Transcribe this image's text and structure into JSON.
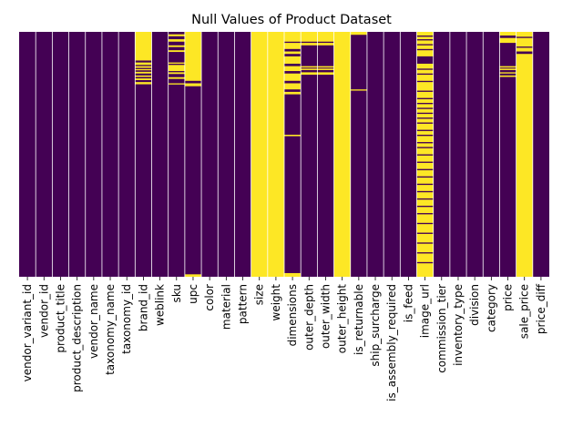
{
  "chart_data": {
    "type": "heatmap",
    "title": "Null Values of Product Dataset",
    "xlabel": "",
    "ylabel": "",
    "colors": {
      "not_null": "#440154",
      "null": "#fde725",
      "separator": "#ffffff"
    },
    "columns": [
      {
        "name": "vendor_variant_id",
        "null_ranges": []
      },
      {
        "name": "vendor_id",
        "null_ranges": []
      },
      {
        "name": "product_title",
        "null_ranges": []
      },
      {
        "name": "product_description",
        "null_ranges": []
      },
      {
        "name": "vendor_name",
        "null_ranges": []
      },
      {
        "name": "taxonomy_name",
        "null_ranges": []
      },
      {
        "name": "taxonomy_id",
        "null_ranges": []
      },
      {
        "name": "brand_id",
        "null_ranges": [
          [
            0,
            0.117
          ],
          [
            0.125,
            0.135
          ],
          [
            0.14,
            0.147
          ],
          [
            0.152,
            0.157
          ],
          [
            0.163,
            0.17
          ],
          [
            0.178,
            0.184
          ],
          [
            0.19,
            0.197
          ],
          [
            0.205,
            0.214
          ]
        ]
      },
      {
        "name": "weblink",
        "null_ranges": []
      },
      {
        "name": "sku",
        "null_ranges": [
          [
            0.01,
            0.018
          ],
          [
            0.03,
            0.04
          ],
          [
            0.055,
            0.062
          ],
          [
            0.075,
            0.082
          ],
          [
            0.125,
            0.13
          ],
          [
            0.135,
            0.16
          ],
          [
            0.165,
            0.172
          ],
          [
            0.185,
            0.192
          ],
          [
            0.21,
            0.215
          ]
        ]
      },
      {
        "name": "upc",
        "null_ranges": [
          [
            0,
            0.2
          ],
          [
            0.21,
            0.222
          ],
          [
            0.99,
            1
          ]
        ]
      },
      {
        "name": "color",
        "null_ranges": []
      },
      {
        "name": "material",
        "null_ranges": []
      },
      {
        "name": "pattern",
        "null_ranges": []
      },
      {
        "name": "size",
        "null_ranges": [
          [
            0,
            1
          ]
        ]
      },
      {
        "name": "weight",
        "null_ranges": [
          [
            0,
            1
          ]
        ]
      },
      {
        "name": "dimensions",
        "null_ranges": [
          [
            0,
            0.04
          ],
          [
            0.045,
            0.07
          ],
          [
            0.08,
            0.09
          ],
          [
            0.1,
            0.13
          ],
          [
            0.14,
            0.16
          ],
          [
            0.17,
            0.2
          ],
          [
            0.21,
            0.235
          ],
          [
            0.245,
            0.255
          ],
          [
            0.42,
            0.426
          ],
          [
            0.985,
            1
          ]
        ]
      },
      {
        "name": "outer_depth",
        "null_ranges": [
          [
            0,
            0.04
          ],
          [
            0.045,
            0.055
          ],
          [
            0.14,
            0.146
          ],
          [
            0.15,
            0.156
          ],
          [
            0.165,
            0.175
          ]
        ]
      },
      {
        "name": "outer_width",
        "null_ranges": [
          [
            0,
            0.04
          ],
          [
            0.045,
            0.055
          ],
          [
            0.14,
            0.146
          ],
          [
            0.15,
            0.156
          ],
          [
            0.165,
            0.175
          ]
        ]
      },
      {
        "name": "outer_height",
        "null_ranges": [
          [
            0,
            1
          ]
        ]
      },
      {
        "name": "is_returnable",
        "null_ranges": [
          [
            0,
            0.012
          ],
          [
            0.235,
            0.24
          ]
        ]
      },
      {
        "name": "ship_surcharge",
        "null_ranges": []
      },
      {
        "name": "is_assembly_required",
        "null_ranges": []
      },
      {
        "name": "is_feed",
        "null_ranges": []
      },
      {
        "name": "image_url",
        "null_ranges": [
          [
            0,
            0.015
          ],
          [
            0.02,
            0.03
          ],
          [
            0.035,
            0.05
          ],
          [
            0.055,
            0.07
          ],
          [
            0.075,
            0.1
          ],
          [
            0.13,
            0.15
          ],
          [
            0.155,
            0.17
          ],
          [
            0.175,
            0.2
          ],
          [
            0.205,
            0.24
          ],
          [
            0.245,
            0.27
          ],
          [
            0.275,
            0.29
          ],
          [
            0.295,
            0.31
          ],
          [
            0.315,
            0.33
          ],
          [
            0.335,
            0.35
          ],
          [
            0.355,
            0.37
          ],
          [
            0.375,
            0.4
          ],
          [
            0.405,
            0.42
          ],
          [
            0.425,
            0.45
          ],
          [
            0.455,
            0.47
          ],
          [
            0.475,
            0.5
          ],
          [
            0.505,
            0.53
          ],
          [
            0.535,
            0.56
          ],
          [
            0.565,
            0.59
          ],
          [
            0.595,
            0.62
          ],
          [
            0.625,
            0.65
          ],
          [
            0.655,
            0.68
          ],
          [
            0.685,
            0.71
          ],
          [
            0.715,
            0.74
          ],
          [
            0.745,
            0.78
          ],
          [
            0.785,
            0.82
          ],
          [
            0.825,
            0.86
          ],
          [
            0.865,
            0.9
          ],
          [
            0.905,
            0.94
          ],
          [
            0.945,
            1
          ]
        ]
      },
      {
        "name": "commission_tier",
        "null_ranges": []
      },
      {
        "name": "inventory_type",
        "null_ranges": []
      },
      {
        "name": "division",
        "null_ranges": []
      },
      {
        "name": "category",
        "null_ranges": []
      },
      {
        "name": "price",
        "null_ranges": [
          [
            0,
            0.015
          ],
          [
            0.025,
            0.045
          ],
          [
            0.14,
            0.146
          ],
          [
            0.15,
            0.156
          ],
          [
            0.165,
            0.17
          ],
          [
            0.178,
            0.184
          ]
        ]
      },
      {
        "name": "sale_price",
        "null_ranges": [
          [
            0,
            0.02
          ],
          [
            0.025,
            0.06
          ],
          [
            0.065,
            0.08
          ],
          [
            0.09,
            1
          ]
        ]
      },
      {
        "name": "price_diff",
        "null_ranges": []
      }
    ]
  }
}
